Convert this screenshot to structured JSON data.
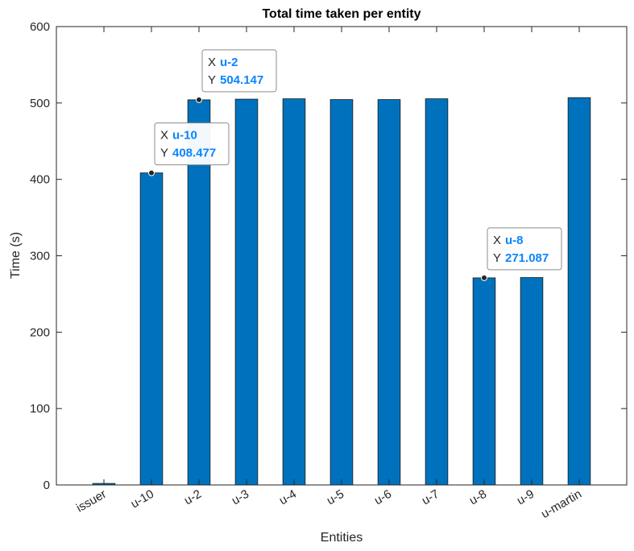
{
  "chart_data": {
    "type": "bar",
    "title": "Total time taken per entity",
    "xlabel": "Entities",
    "ylabel": "Time (s)",
    "ylim": [
      0,
      600
    ],
    "yticks": [
      0,
      100,
      200,
      300,
      400,
      500,
      600
    ],
    "grid": false,
    "categories": [
      "issuer",
      "u-10",
      "u-2",
      "u-3",
      "u-4",
      "u-5",
      "u-6",
      "u-7",
      "u-8",
      "u-9",
      "u-martin"
    ],
    "values": [
      2,
      408.477,
      504.147,
      505,
      505.5,
      504.5,
      504.5,
      505.5,
      271.087,
      271.5,
      507
    ],
    "bar_color": "#0072BD",
    "datatips": [
      {
        "x_key": "X",
        "x": "u-10",
        "y_key": "Y",
        "y": "408.477"
      },
      {
        "x_key": "X",
        "x": "u-2",
        "y_key": "Y",
        "y": "504.147"
      },
      {
        "x_key": "X",
        "x": "u-8",
        "y_key": "Y",
        "y": "271.087"
      }
    ],
    "datatip_value_color": "#0A84FF"
  }
}
